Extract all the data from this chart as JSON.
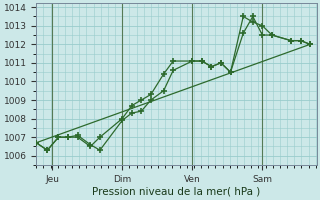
{
  "title": "",
  "xlabel": "Pression niveau de la mer( hPa )",
  "bg_color": "#cce8e8",
  "grid_color": "#99cccc",
  "line_color": "#2d6a2d",
  "ylim": [
    1005.5,
    1014.2
  ],
  "xlim": [
    0.0,
    8.8
  ],
  "yticks": [
    1006,
    1007,
    1008,
    1009,
    1010,
    1011,
    1012,
    1013,
    1014
  ],
  "xtick_positions": [
    0.5,
    2.7,
    4.9,
    7.1
  ],
  "xtick_labels": [
    "Jeu",
    "Dim",
    "Ven",
    "Sam"
  ],
  "vline_positions": [
    0.5,
    2.7,
    4.9,
    7.1
  ],
  "series1_x": [
    0.0,
    0.35,
    0.7,
    1.0,
    1.3,
    1.7,
    2.0,
    2.7,
    3.0,
    3.3,
    3.6,
    4.0,
    4.3,
    4.9,
    5.2,
    5.5,
    5.8,
    6.1,
    6.5,
    6.8,
    7.1,
    7.4,
    8.0,
    8.3,
    8.6
  ],
  "series1_y": [
    1006.7,
    1006.3,
    1007.0,
    1007.0,
    1007.0,
    1006.5,
    1007.0,
    1008.0,
    1008.7,
    1009.0,
    1009.3,
    1010.4,
    1011.1,
    1011.1,
    1011.1,
    1010.8,
    1011.0,
    1010.5,
    1013.5,
    1013.2,
    1013.0,
    1012.5,
    1012.2,
    1012.2,
    1012.0
  ],
  "series2_x": [
    0.0,
    0.35,
    0.7,
    1.0,
    1.3,
    1.7,
    2.0,
    2.7,
    3.0,
    3.3,
    3.6,
    4.0,
    4.3,
    4.9,
    5.2,
    5.5,
    5.8,
    6.1,
    6.5,
    6.8,
    7.1,
    7.4,
    8.0,
    8.3,
    8.6
  ],
  "series2_y": [
    1006.7,
    1006.3,
    1007.0,
    1007.0,
    1007.1,
    1006.6,
    1006.3,
    1007.9,
    1008.3,
    1008.4,
    1009.0,
    1009.5,
    1010.6,
    1011.1,
    1011.1,
    1010.8,
    1011.0,
    1010.5,
    1012.6,
    1013.5,
    1012.5,
    1012.5,
    1012.2,
    1012.2,
    1012.0
  ],
  "trend_x": [
    0.0,
    8.6
  ],
  "trend_y": [
    1006.7,
    1012.0
  ],
  "marker_size": 4.0,
  "linewidth": 0.9,
  "tick_fontsize": 6.5,
  "xlabel_fontsize": 7.5
}
